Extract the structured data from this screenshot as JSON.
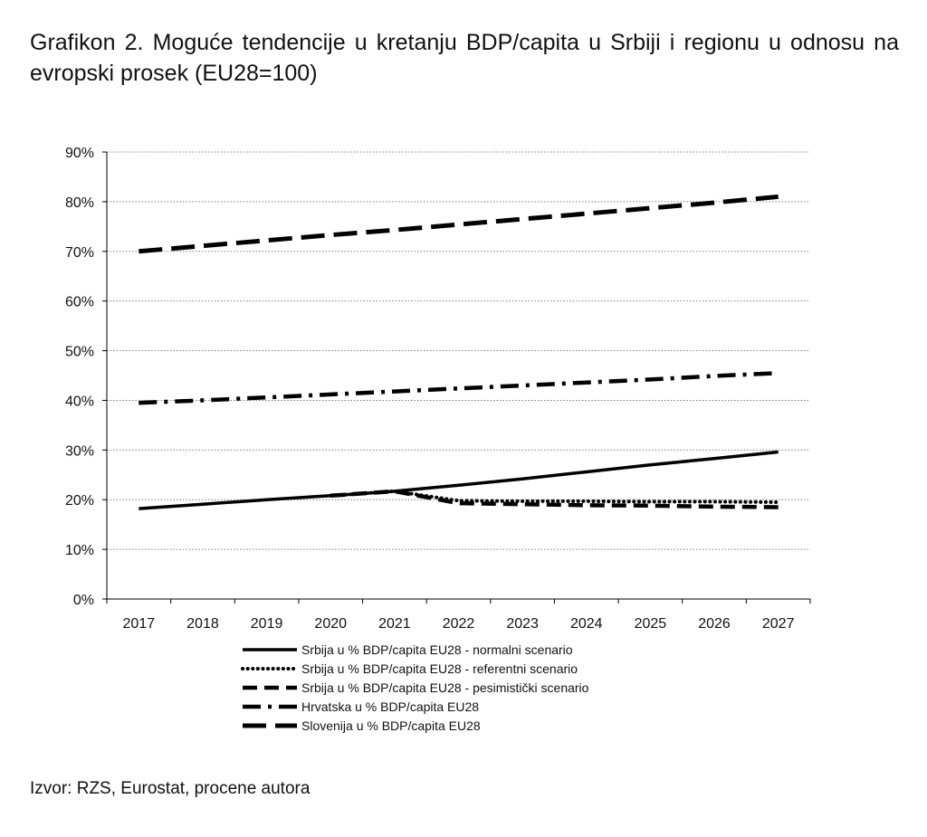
{
  "title": "Grafikon 2. Moguće tendencije u kretanju BDP/capita u Srbiji i regionu u odnosu na evropski prosek (EU28=100)",
  "source": "Izvor: RZS, Eurostat, procene autora",
  "chart_data": {
    "type": "line",
    "title": "Grafikon 2. Moguće tendencije u kretanju BDP/capita u Srbiji i regionu u odnosu na evropski prosek (EU28=100)",
    "x": [
      2017,
      2018,
      2019,
      2020,
      2021,
      2022,
      2023,
      2024,
      2025,
      2026,
      2027
    ],
    "ylim": [
      0,
      90
    ],
    "yticks": [
      "0%",
      "10%",
      "20%",
      "30%",
      "40%",
      "50%",
      "60%",
      "70%",
      "80%",
      "90%"
    ],
    "grid": "horizontal, dotted",
    "legend_position": "bottom",
    "series": [
      {
        "name": "Srbija u % BDP/capita EU28 - normalni scenario",
        "style": "solid",
        "values": [
          18.2,
          19.1,
          20.0,
          20.8,
          21.7,
          22.9,
          24.2,
          25.6,
          27.0,
          28.3,
          29.6
        ]
      },
      {
        "name": "Srbija u % BDP/capita EU28 - referentni scenario",
        "style": "dotted",
        "values": [
          null,
          null,
          null,
          20.8,
          21.7,
          19.8,
          19.7,
          19.7,
          19.6,
          19.6,
          19.5
        ]
      },
      {
        "name": "Srbija u % BDP/capita EU28 - pesimistički scenario",
        "style": "dashed",
        "values": [
          null,
          null,
          null,
          20.8,
          21.7,
          19.3,
          19.1,
          18.9,
          18.8,
          18.6,
          18.5
        ]
      },
      {
        "name": "Hrvatska u % BDP/capita EU28",
        "style": "dashdot",
        "values": [
          39.5,
          40.0,
          40.6,
          41.2,
          41.8,
          42.4,
          43.0,
          43.6,
          44.2,
          44.9,
          45.5
        ]
      },
      {
        "name": "Slovenija u % BDP/capita EU28",
        "style": "longdash",
        "values": [
          70.0,
          71.1,
          72.2,
          73.3,
          74.3,
          75.4,
          76.5,
          77.6,
          78.7,
          79.8,
          81.0
        ]
      }
    ],
    "colors": {
      "lines": "#000000",
      "grid": "#7f7f7f",
      "axis": "#000000"
    }
  }
}
